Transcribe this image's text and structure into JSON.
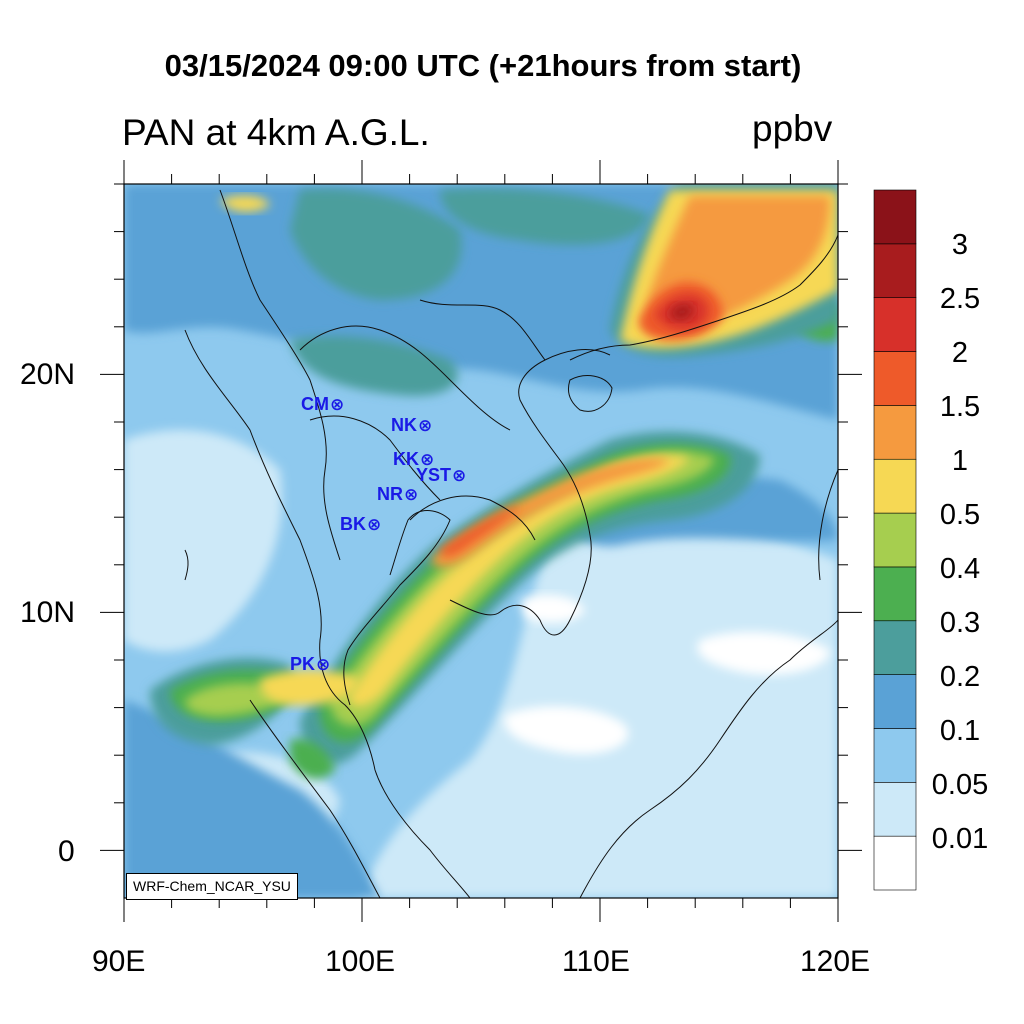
{
  "title": "03/15/2024 09:00 UTC (+21hours from start)",
  "subtitle": "PAN at 4km A.G.L.",
  "units": "ppbv",
  "credit": "WRF-Chem_NCAR_YSU",
  "map": {
    "lon_range": [
      90,
      120
    ],
    "lat_range": [
      -2,
      28
    ],
    "x_ticks": [
      "90E",
      "100E",
      "110E",
      "120E"
    ],
    "y_ticks": [
      "20N",
      "10N",
      "0"
    ]
  },
  "colorbar": {
    "levels": [
      "3",
      "2.5",
      "2",
      "1.5",
      "1",
      "0.5",
      "0.4",
      "0.3",
      "0.2",
      "0.1",
      "0.05",
      "0.01"
    ],
    "colors": [
      "#ffffff",
      "#cde9f8",
      "#8ec9ee",
      "#5aa2d6",
      "#4c9e9c",
      "#4caf50",
      "#a6ce4f",
      "#f6d854",
      "#f59a3f",
      "#ee5a2a",
      "#d7302a",
      "#a81c1e",
      "#8b1219"
    ]
  },
  "stations": [
    {
      "code": "CM",
      "marker": "⊗"
    },
    {
      "code": "NK",
      "marker": "⊗"
    },
    {
      "code": "KK",
      "marker": "⊗"
    },
    {
      "code": "YST",
      "marker": "⊗"
    },
    {
      "code": "NR",
      "marker": "⊗"
    },
    {
      "code": "BK",
      "marker": "⊗"
    },
    {
      "code": "PK",
      "marker": "⊗"
    }
  ]
}
